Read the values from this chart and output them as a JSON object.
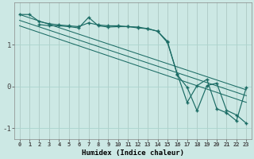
{
  "xlabel": "Humidex (Indice chaleur)",
  "bg_color": "#cce8e4",
  "grid_color": "#aad4ce",
  "line_color": "#1a6b64",
  "xlim": [
    -0.5,
    23.5
  ],
  "ylim": [
    -1.25,
    2.0
  ],
  "yticks": [
    -1,
    0,
    1
  ],
  "xticks": [
    0,
    1,
    2,
    3,
    4,
    5,
    6,
    7,
    8,
    9,
    10,
    11,
    12,
    13,
    14,
    15,
    16,
    17,
    18,
    19,
    20,
    21,
    22,
    23
  ],
  "line1_x": [
    0,
    1,
    2,
    3,
    4,
    5,
    6,
    7,
    8,
    9,
    10,
    11,
    12,
    13,
    14,
    15,
    16,
    17,
    18,
    19,
    20,
    21,
    22,
    23
  ],
  "line1_y": [
    1.72,
    1.72,
    1.55,
    1.5,
    1.47,
    1.45,
    1.43,
    1.52,
    1.47,
    1.45,
    1.45,
    1.43,
    1.4,
    1.38,
    1.32,
    1.05,
    0.3,
    -0.38,
    0.02,
    0.17,
    -0.53,
    -0.63,
    -0.82,
    -0.02
  ],
  "line2_x": [
    2,
    3,
    4,
    5,
    6,
    7,
    8,
    9,
    10,
    11,
    12,
    13,
    14,
    15,
    16,
    17,
    18,
    19,
    20,
    21,
    22,
    23
  ],
  "line2_y": [
    1.48,
    1.45,
    1.45,
    1.43,
    1.4,
    1.65,
    1.45,
    1.42,
    1.43,
    1.43,
    1.42,
    1.38,
    1.32,
    1.08,
    0.28,
    -0.02,
    -0.58,
    0.02,
    0.08,
    -0.57,
    -0.68,
    -0.88
  ],
  "line3_x": [
    0,
    23
  ],
  "line3_y": [
    1.72,
    -0.08
  ],
  "line4_x": [
    0,
    23
  ],
  "line4_y": [
    1.58,
    -0.22
  ],
  "line5_x": [
    0,
    23
  ],
  "line5_y": [
    1.45,
    -0.38
  ]
}
